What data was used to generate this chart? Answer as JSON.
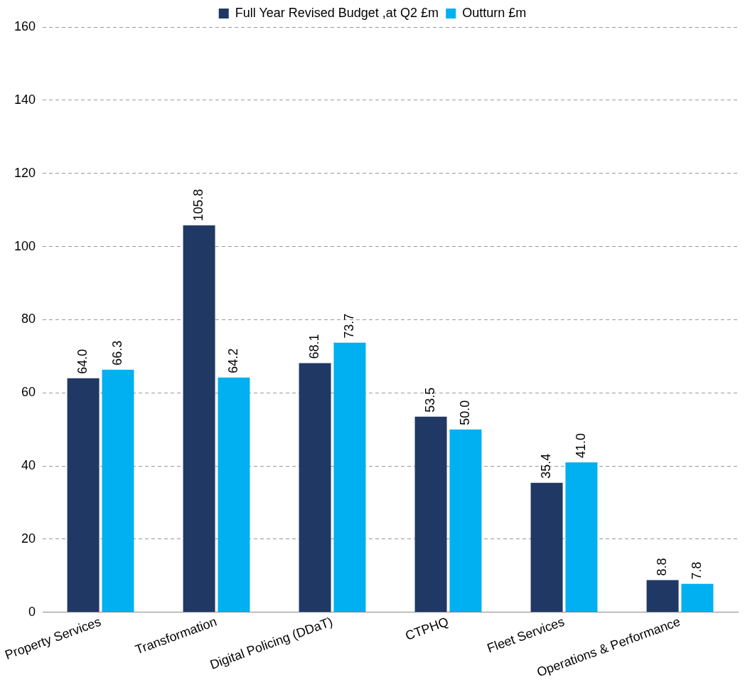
{
  "chart_data": {
    "type": "bar",
    "categories": [
      "Property Services",
      "Transformation",
      "Digital Policing (DDaT)",
      "CTPHQ",
      "Fleet Services",
      "Operations & Performance"
    ],
    "series": [
      {
        "name": "Full Year Revised Budget ,at Q2 £m",
        "color": "#203864",
        "values": [
          64.0,
          105.8,
          68.1,
          53.5,
          35.4,
          8.8
        ],
        "value_labels": [
          "64.0",
          "105.8",
          "68.1",
          "53.5",
          "35.4",
          "8.8"
        ]
      },
      {
        "name": "Outturn £m",
        "color": "#00b0f0",
        "values": [
          66.3,
          64.2,
          73.7,
          50.0,
          41.0,
          7.8
        ],
        "value_labels": [
          "66.3",
          "64.2",
          "73.7",
          "50.0",
          "41.0",
          "7.8"
        ]
      }
    ],
    "ylim": [
      0,
      160
    ],
    "yticks": [
      0,
      20,
      40,
      60,
      80,
      100,
      120,
      140,
      160
    ],
    "grid": "y",
    "legend": "top"
  }
}
